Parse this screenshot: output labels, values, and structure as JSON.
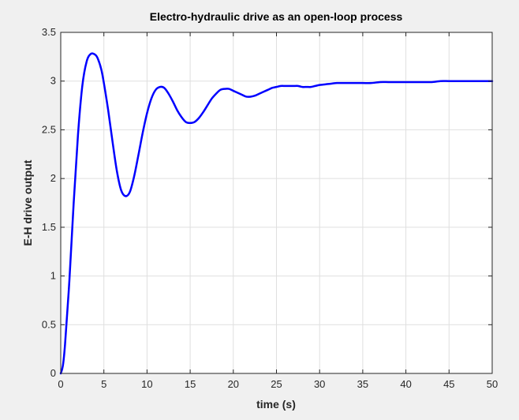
{
  "chart_data": {
    "type": "line",
    "title": "Electro-hydraulic drive as an open-loop process",
    "xlabel": "time (s)",
    "ylabel": "E-H drive output",
    "xlim": [
      0,
      50
    ],
    "ylim": [
      0,
      3.5
    ],
    "xticks": [
      "0",
      "5",
      "10",
      "15",
      "20",
      "25",
      "30",
      "35",
      "40",
      "45",
      "50"
    ],
    "yticks": [
      "0",
      "0.5",
      "1",
      "1.5",
      "2",
      "2.5",
      "3",
      "3.5"
    ],
    "grid": true,
    "line_color": "#0000ff",
    "series": [
      {
        "x": [
          0,
          0.25,
          0.5,
          1,
          1.5,
          2,
          2.5,
          3,
          3.5,
          4,
          4.3,
          4.7,
          5,
          5.5,
          6,
          6.5,
          7,
          7.5,
          8,
          8.5,
          9,
          9.5,
          10,
          10.5,
          11,
          11.5,
          12,
          12.5,
          13,
          13.5,
          14,
          14.5,
          15,
          15.5,
          16,
          16.5,
          17,
          17.5,
          18,
          18.5,
          19,
          19.5,
          20,
          20.5,
          21,
          21.5,
          22,
          22.5,
          23,
          23.5,
          24,
          24.5,
          25,
          25.5,
          26,
          26.5,
          27,
          27.5,
          28,
          28.5,
          29,
          29.5,
          30,
          31,
          32,
          33,
          34,
          35,
          36,
          37,
          38,
          39,
          40,
          41,
          42,
          43,
          44,
          45,
          46,
          47,
          48,
          49,
          50
        ],
        "y": [
          0,
          0.08,
          0.3,
          0.95,
          1.75,
          2.45,
          2.95,
          3.2,
          3.28,
          3.27,
          3.23,
          3.12,
          2.98,
          2.7,
          2.38,
          2.08,
          1.88,
          1.82,
          1.86,
          2.02,
          2.24,
          2.47,
          2.67,
          2.82,
          2.91,
          2.94,
          2.93,
          2.87,
          2.79,
          2.7,
          2.63,
          2.58,
          2.57,
          2.58,
          2.62,
          2.68,
          2.75,
          2.82,
          2.87,
          2.91,
          2.92,
          2.92,
          2.9,
          2.88,
          2.86,
          2.84,
          2.84,
          2.85,
          2.87,
          2.89,
          2.91,
          2.93,
          2.94,
          2.95,
          2.95,
          2.95,
          2.95,
          2.95,
          2.94,
          2.94,
          2.94,
          2.95,
          2.96,
          2.97,
          2.98,
          2.98,
          2.98,
          2.98,
          2.98,
          2.99,
          2.99,
          2.99,
          2.99,
          2.99,
          2.99,
          2.99,
          3.0,
          3.0,
          3.0,
          3.0,
          3.0,
          3.0,
          3.0
        ]
      }
    ]
  }
}
